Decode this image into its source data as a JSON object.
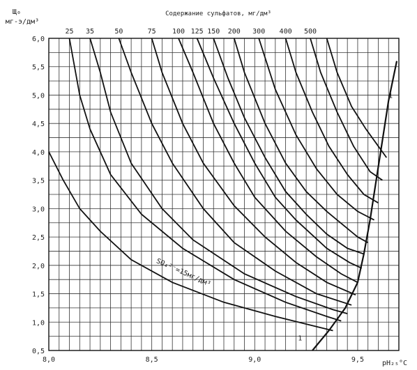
{
  "chart_data": {
    "type": "line",
    "title": "Содержание сульфатов, мг/дм³",
    "ylabel": "Щ₀",
    "ylabel_units": "мг-э/дм³",
    "xlabel": "pH₂₅°C",
    "xlim": [
      8.0,
      9.7
    ],
    "ylim": [
      0.5,
      6.0
    ],
    "grid": true,
    "x_ticks": [
      "8,0",
      "8,5",
      "9,0",
      "9,5"
    ],
    "y_ticks": [
      "0,5",
      "1,0",
      "1,5",
      "2,0",
      "2,5",
      "3,0",
      "3,5",
      "4,0",
      "4,5",
      "5,0",
      "5,5",
      "6,0"
    ],
    "top_ticks": [
      "25",
      "35",
      "50",
      "75",
      "100",
      "125",
      "150",
      "200",
      "300",
      "400",
      "500"
    ],
    "curve_label": "SO₄²⁻=15мг/дм³",
    "boundary_label": "1",
    "boundary": {
      "label": "1",
      "x": [
        9.28,
        9.36,
        9.44,
        9.5,
        9.53,
        9.56,
        9.59,
        9.62,
        9.65,
        9.69
      ],
      "y": [
        0.5,
        0.85,
        1.25,
        1.7,
        2.2,
        2.8,
        3.5,
        4.2,
        4.9,
        5.6
      ]
    },
    "series": [
      {
        "x": [
          8.0,
          8.07,
          8.15,
          8.25,
          8.4,
          8.6,
          8.85,
          9.1,
          9.3,
          9.38
        ],
        "y": [
          4.0,
          3.5,
          3.0,
          2.6,
          2.1,
          1.7,
          1.35,
          1.1,
          0.92,
          0.85
        ]
      },
      {
        "x": [
          8.1,
          8.15,
          8.2,
          8.3,
          8.45,
          8.65,
          8.9,
          9.15,
          9.35,
          9.42
        ],
        "y": [
          6.0,
          5.0,
          4.4,
          3.6,
          2.9,
          2.3,
          1.75,
          1.35,
          1.1,
          1.02
        ]
      },
      {
        "x": [
          8.2,
          8.25,
          8.3,
          8.4,
          8.55,
          8.7,
          8.95,
          9.2,
          9.38,
          9.45
        ],
        "y": [
          6.0,
          5.4,
          4.7,
          3.8,
          3.0,
          2.45,
          1.85,
          1.45,
          1.22,
          1.15
        ]
      },
      {
        "x": [
          8.34,
          8.4,
          8.5,
          8.6,
          8.75,
          8.9,
          9.1,
          9.3,
          9.47
        ],
        "y": [
          6.0,
          5.4,
          4.5,
          3.8,
          3.0,
          2.4,
          1.9,
          1.5,
          1.3
        ]
      },
      {
        "x": [
          8.5,
          8.55,
          8.65,
          8.75,
          8.9,
          9.05,
          9.2,
          9.35,
          9.49
        ],
        "y": [
          6.0,
          5.4,
          4.5,
          3.8,
          3.05,
          2.5,
          2.05,
          1.7,
          1.48
        ]
      },
      {
        "x": [
          8.63,
          8.7,
          8.8,
          8.9,
          9.0,
          9.15,
          9.3,
          9.42,
          9.5
        ],
        "y": [
          6.0,
          5.4,
          4.5,
          3.8,
          3.2,
          2.6,
          2.15,
          1.85,
          1.7
        ]
      },
      {
        "x": [
          8.72,
          8.8,
          8.9,
          9.0,
          9.1,
          9.2,
          9.35,
          9.46,
          9.52
        ],
        "y": [
          6.0,
          5.3,
          4.5,
          3.8,
          3.2,
          2.8,
          2.3,
          2.05,
          1.95
        ]
      },
      {
        "x": [
          8.8,
          8.87,
          8.95,
          9.05,
          9.15,
          9.25,
          9.35,
          9.45,
          9.53
        ],
        "y": [
          6.0,
          5.3,
          4.6,
          3.9,
          3.3,
          2.9,
          2.55,
          2.3,
          2.2
        ]
      },
      {
        "x": [
          8.9,
          8.95,
          9.05,
          9.15,
          9.25,
          9.35,
          9.45,
          9.5,
          9.55
        ],
        "y": [
          6.0,
          5.4,
          4.5,
          3.8,
          3.3,
          2.95,
          2.65,
          2.5,
          2.4
        ]
      },
      {
        "x": [
          9.02,
          9.1,
          9.2,
          9.3,
          9.4,
          9.5,
          9.58
        ],
        "y": [
          6.0,
          5.1,
          4.3,
          3.7,
          3.25,
          2.95,
          2.8
        ]
      },
      {
        "x": [
          9.15,
          9.2,
          9.28,
          9.36,
          9.45,
          9.53,
          9.6
        ],
        "y": [
          6.0,
          5.4,
          4.7,
          4.1,
          3.6,
          3.25,
          3.1
        ]
      },
      {
        "x": [
          9.27,
          9.32,
          9.4,
          9.48,
          9.56,
          9.62
        ],
        "y": [
          6.0,
          5.4,
          4.7,
          4.1,
          3.65,
          3.5
        ]
      },
      {
        "x": [
          9.35,
          9.4,
          9.47,
          9.54,
          9.6,
          9.64
        ],
        "y": [
          6.0,
          5.4,
          4.8,
          4.4,
          4.1,
          3.9
        ]
      }
    ]
  }
}
